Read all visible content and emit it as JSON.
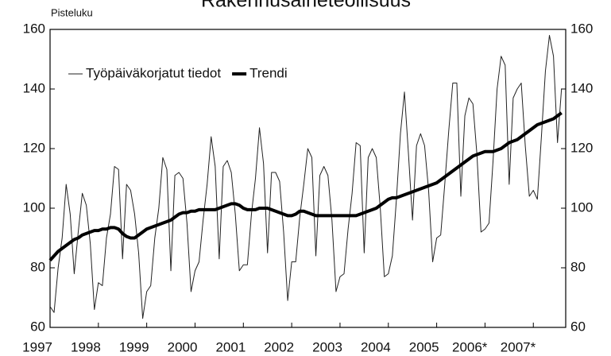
{
  "chart_data": {
    "type": "line",
    "title": "Rakennusaineteollisuus",
    "y_label": "Pisteluku",
    "xlim": [
      1997,
      2007.67
    ],
    "xticks": [
      {
        "value": 1997,
        "label": "1997"
      },
      {
        "value": 1998,
        "label": "1998"
      },
      {
        "value": 1999,
        "label": "1999"
      },
      {
        "value": 2000,
        "label": "2000"
      },
      {
        "value": 2001,
        "label": "2001"
      },
      {
        "value": 2002,
        "label": "2002"
      },
      {
        "value": 2003,
        "label": "2003"
      },
      {
        "value": 2004,
        "label": "2004"
      },
      {
        "value": 2005,
        "label": "2005"
      },
      {
        "value": 2006,
        "label": "2006*"
      },
      {
        "value": 2007,
        "label": "2007*"
      }
    ],
    "ylim": [
      60,
      160
    ],
    "yticks": [
      60,
      80,
      100,
      120,
      140,
      160
    ],
    "y2lim": [
      60,
      160
    ],
    "y2ticks": [
      60,
      80,
      100,
      120,
      140,
      160
    ],
    "legend": "upper left",
    "x": [
      1997.0,
      1997.083,
      1997.167,
      1997.25,
      1997.333,
      1997.417,
      1997.5,
      1997.583,
      1997.667,
      1997.75,
      1997.833,
      1997.917,
      1998.0,
      1998.083,
      1998.167,
      1998.25,
      1998.333,
      1998.417,
      1998.5,
      1998.583,
      1998.667,
      1998.75,
      1998.833,
      1998.917,
      1999.0,
      1999.083,
      1999.167,
      1999.25,
      1999.333,
      1999.417,
      1999.5,
      1999.583,
      1999.667,
      1999.75,
      1999.833,
      1999.917,
      2000.0,
      2000.083,
      2000.167,
      2000.25,
      2000.333,
      2000.417,
      2000.5,
      2000.583,
      2000.667,
      2000.75,
      2000.833,
      2000.917,
      2001.0,
      2001.083,
      2001.167,
      2001.25,
      2001.333,
      2001.417,
      2001.5,
      2001.583,
      2001.667,
      2001.75,
      2001.833,
      2001.917,
      2002.0,
      2002.083,
      2002.167,
      2002.25,
      2002.333,
      2002.417,
      2002.5,
      2002.583,
      2002.667,
      2002.75,
      2002.833,
      2002.917,
      2003.0,
      2003.083,
      2003.167,
      2003.25,
      2003.333,
      2003.417,
      2003.5,
      2003.583,
      2003.667,
      2003.75,
      2003.833,
      2003.917,
      2004.0,
      2004.083,
      2004.167,
      2004.25,
      2004.333,
      2004.417,
      2004.5,
      2004.583,
      2004.667,
      2004.75,
      2004.833,
      2004.917,
      2005.0,
      2005.083,
      2005.167,
      2005.25,
      2005.333,
      2005.417,
      2005.5,
      2005.583,
      2005.667,
      2005.75,
      2005.833,
      2005.917,
      2006.0,
      2006.083,
      2006.167,
      2006.25,
      2006.333,
      2006.417,
      2006.5,
      2006.583,
      2006.667,
      2006.75,
      2006.833,
      2006.917,
      2007.0,
      2007.083,
      2007.167,
      2007.25,
      2007.333,
      2007.417,
      2007.5,
      2007.583
    ],
    "series": [
      {
        "name": "Työpäiväkorjatut tiedot",
        "color": "#222222",
        "width": 1,
        "values": [
          67,
          65,
          80,
          90,
          108,
          98,
          78,
          92,
          105,
          101,
          88,
          66,
          75,
          74,
          90,
          98,
          114,
          113,
          83,
          108,
          106,
          98,
          85,
          63,
          72,
          74,
          90,
          100,
          117,
          113,
          79,
          111,
          112,
          110,
          95,
          72,
          79,
          82,
          96,
          108,
          124,
          114,
          83,
          114,
          116,
          112,
          98,
          79,
          81,
          81,
          98,
          110,
          127,
          115,
          85,
          112,
          112,
          109,
          92,
          69,
          82,
          82,
          97,
          108,
          120,
          117,
          84,
          111,
          114,
          111,
          96,
          72,
          77,
          78,
          93,
          105,
          122,
          121,
          85,
          117,
          120,
          117,
          100,
          77,
          78,
          84,
          103,
          125,
          139,
          118,
          96,
          121,
          125,
          121,
          106,
          82,
          90,
          91,
          108,
          126,
          142,
          142,
          104,
          131,
          137,
          135,
          118,
          92,
          93,
          95,
          116,
          140,
          151,
          148,
          108,
          137,
          140,
          142,
          121,
          104,
          106,
          103,
          124,
          146,
          158,
          151,
          122,
          140
        ]
      },
      {
        "name": "Trendi",
        "color": "#000000",
        "width": 4,
        "values": [
          82.5,
          84,
          85.5,
          86.5,
          87.5,
          88.5,
          89.5,
          90,
          91,
          91.5,
          92,
          92.5,
          92.5,
          93,
          93,
          93.5,
          93.5,
          93,
          91.5,
          90.5,
          90,
          90,
          91,
          92,
          93,
          93.5,
          94,
          94.5,
          95,
          95.5,
          96,
          97,
          98,
          98.5,
          98.5,
          99,
          99,
          99.5,
          99.5,
          99.5,
          99.5,
          99.5,
          100,
          100.5,
          101,
          101.5,
          101.5,
          101,
          100,
          99.5,
          99.5,
          99.5,
          100,
          100,
          100,
          99.5,
          99,
          98.5,
          98,
          97.5,
          97.5,
          98,
          99,
          99,
          98.5,
          98,
          97.5,
          97.5,
          97.5,
          97.5,
          97.5,
          97.5,
          97.5,
          97.5,
          97.5,
          97.5,
          97.5,
          98,
          98.5,
          99,
          99.5,
          100,
          101,
          102,
          103,
          103.5,
          103.5,
          104,
          104.5,
          105,
          105.5,
          106,
          106.5,
          107,
          107.5,
          108,
          108.5,
          109.5,
          110.5,
          111.5,
          112.5,
          113.5,
          114.5,
          115.5,
          116.5,
          117.5,
          118,
          118.5,
          119,
          119,
          119,
          119.5,
          120,
          121,
          122,
          122.5,
          123,
          124,
          125,
          126,
          127,
          128,
          128.5,
          129,
          129.5,
          130,
          131,
          132
        ]
      }
    ]
  }
}
